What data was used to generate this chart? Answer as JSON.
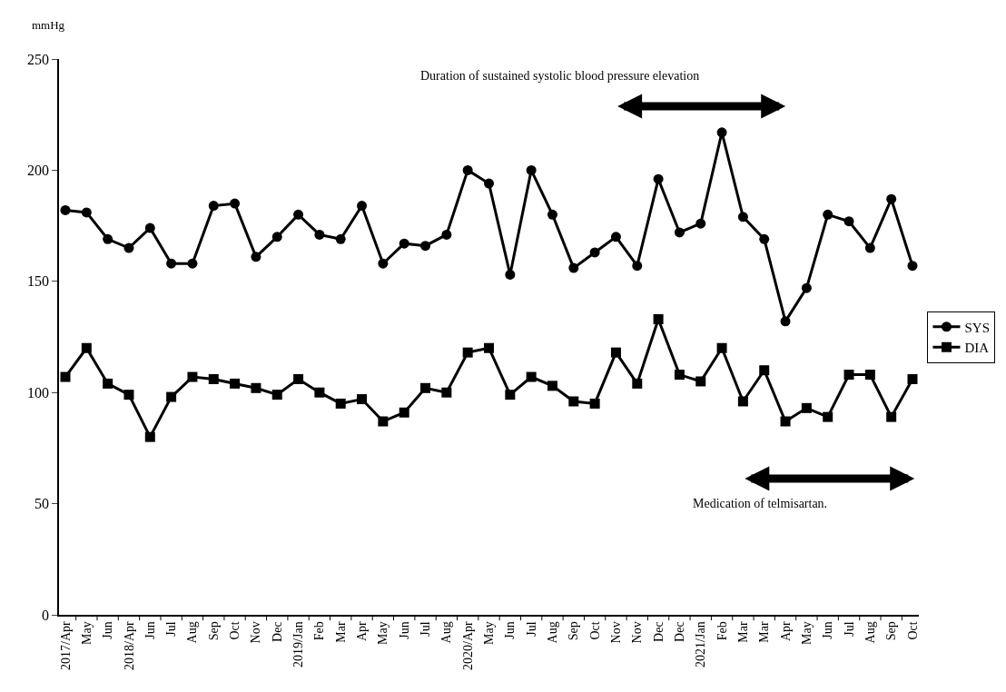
{
  "chart_data": {
    "type": "line",
    "ylabel": "mmHg",
    "categories": [
      "2017/Apr",
      "May",
      "Jun",
      "2018/Apr",
      "Jun",
      "Jul",
      "Aug",
      "Sep",
      "Oct",
      "Nov",
      "Dec",
      "2019/Jan",
      "Feb",
      "Mar",
      "Apr",
      "May",
      "Jun",
      "Jul",
      "Aug",
      "2020/Apr",
      "May",
      "Jun",
      "Jul",
      "Aug",
      "Sep",
      "Oct",
      "Nov",
      "Nov",
      "Dec",
      "Dec",
      "2021/Jan",
      "Feb",
      "Mar",
      "Mar",
      "Apr",
      "May",
      "Jun",
      "Jul",
      "Aug",
      "Sep",
      "Oct"
    ],
    "series": [
      {
        "name": "SYS",
        "color": "#000000",
        "marker": "circle",
        "values": [
          182,
          181,
          169,
          165,
          174,
          158,
          158,
          184,
          185,
          161,
          170,
          180,
          171,
          169,
          184,
          158,
          167,
          166,
          171,
          200,
          194,
          153,
          200,
          180,
          156,
          163,
          170,
          157,
          196,
          172,
          176,
          217,
          179,
          169,
          132,
          147,
          180,
          177,
          165,
          187,
          157
        ]
      },
      {
        "name": "DIA",
        "color": "#000000",
        "marker": "square",
        "values": [
          107,
          120,
          104,
          99,
          80,
          98,
          107,
          106,
          104,
          102,
          99,
          106,
          100,
          95,
          97,
          87,
          91,
          102,
          100,
          118,
          120,
          99,
          107,
          103,
          96,
          95,
          118,
          104,
          133,
          108,
          105,
          120,
          96,
          110,
          87,
          93,
          89,
          108,
          108,
          89,
          106
        ]
      }
    ],
    "ylim": [
      0,
      250
    ],
    "yticks": [
      0,
      50,
      100,
      150,
      200,
      250
    ],
    "legend": "right",
    "line_style": "solid",
    "annotations": [
      "Duration of sustained systolic blood pressure elevation",
      "Medication of telmisartan."
    ]
  }
}
